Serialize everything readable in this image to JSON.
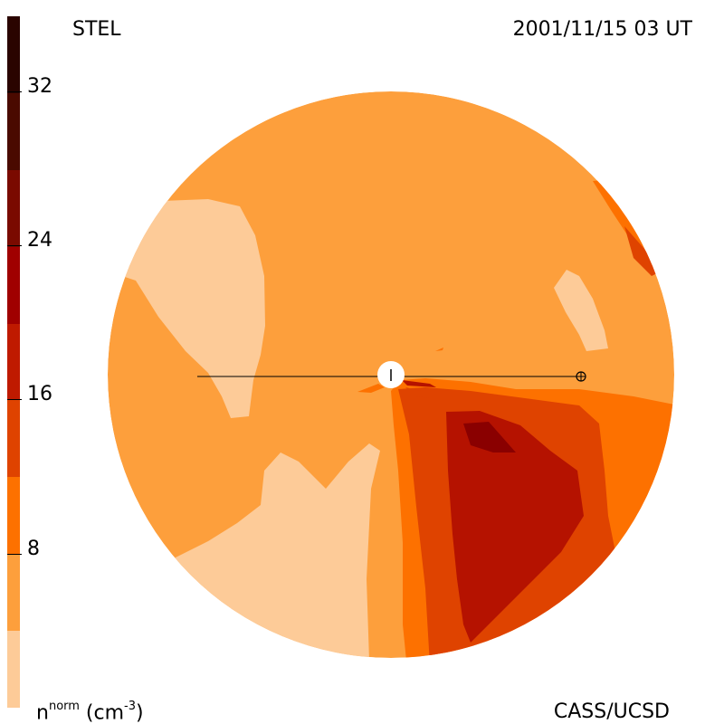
{
  "header": {
    "left_label": "STEL",
    "right_label": "2001/11/15 03 UT"
  },
  "footer": {
    "source_label": "CASS/UCSD"
  },
  "colorbar": {
    "unit": {
      "base": "n",
      "sup": "norm",
      "paren_open": " (cm",
      "unit_sup": "-3",
      "paren_close": ")"
    },
    "ticks": [
      "8",
      "16",
      "24",
      "32"
    ],
    "levels": [
      {
        "label": "",
        "color": "#fdcb98"
      },
      {
        "label": "",
        "color": "#fd9f3c"
      },
      {
        "label": "",
        "color": "#fd7100"
      },
      {
        "label": "",
        "color": "#df4300"
      },
      {
        "label": "",
        "color": "#bf1a00"
      },
      {
        "label": "",
        "color": "#a00000"
      },
      {
        "label": "",
        "color": "#7a0a00"
      },
      {
        "label": "",
        "color": "#4a0a00"
      },
      {
        "label": "",
        "color": "#2a0400"
      }
    ]
  },
  "map": {
    "colors": {
      "pale": "#fdcb98",
      "base": "#fd9f3c",
      "orange": "#fd7100",
      "dark_orange": "#df4300",
      "red": "#b51200",
      "dark_red": "#8a0000"
    },
    "markers": {
      "sun": "sun-marker",
      "earth": "earth-marker"
    }
  }
}
